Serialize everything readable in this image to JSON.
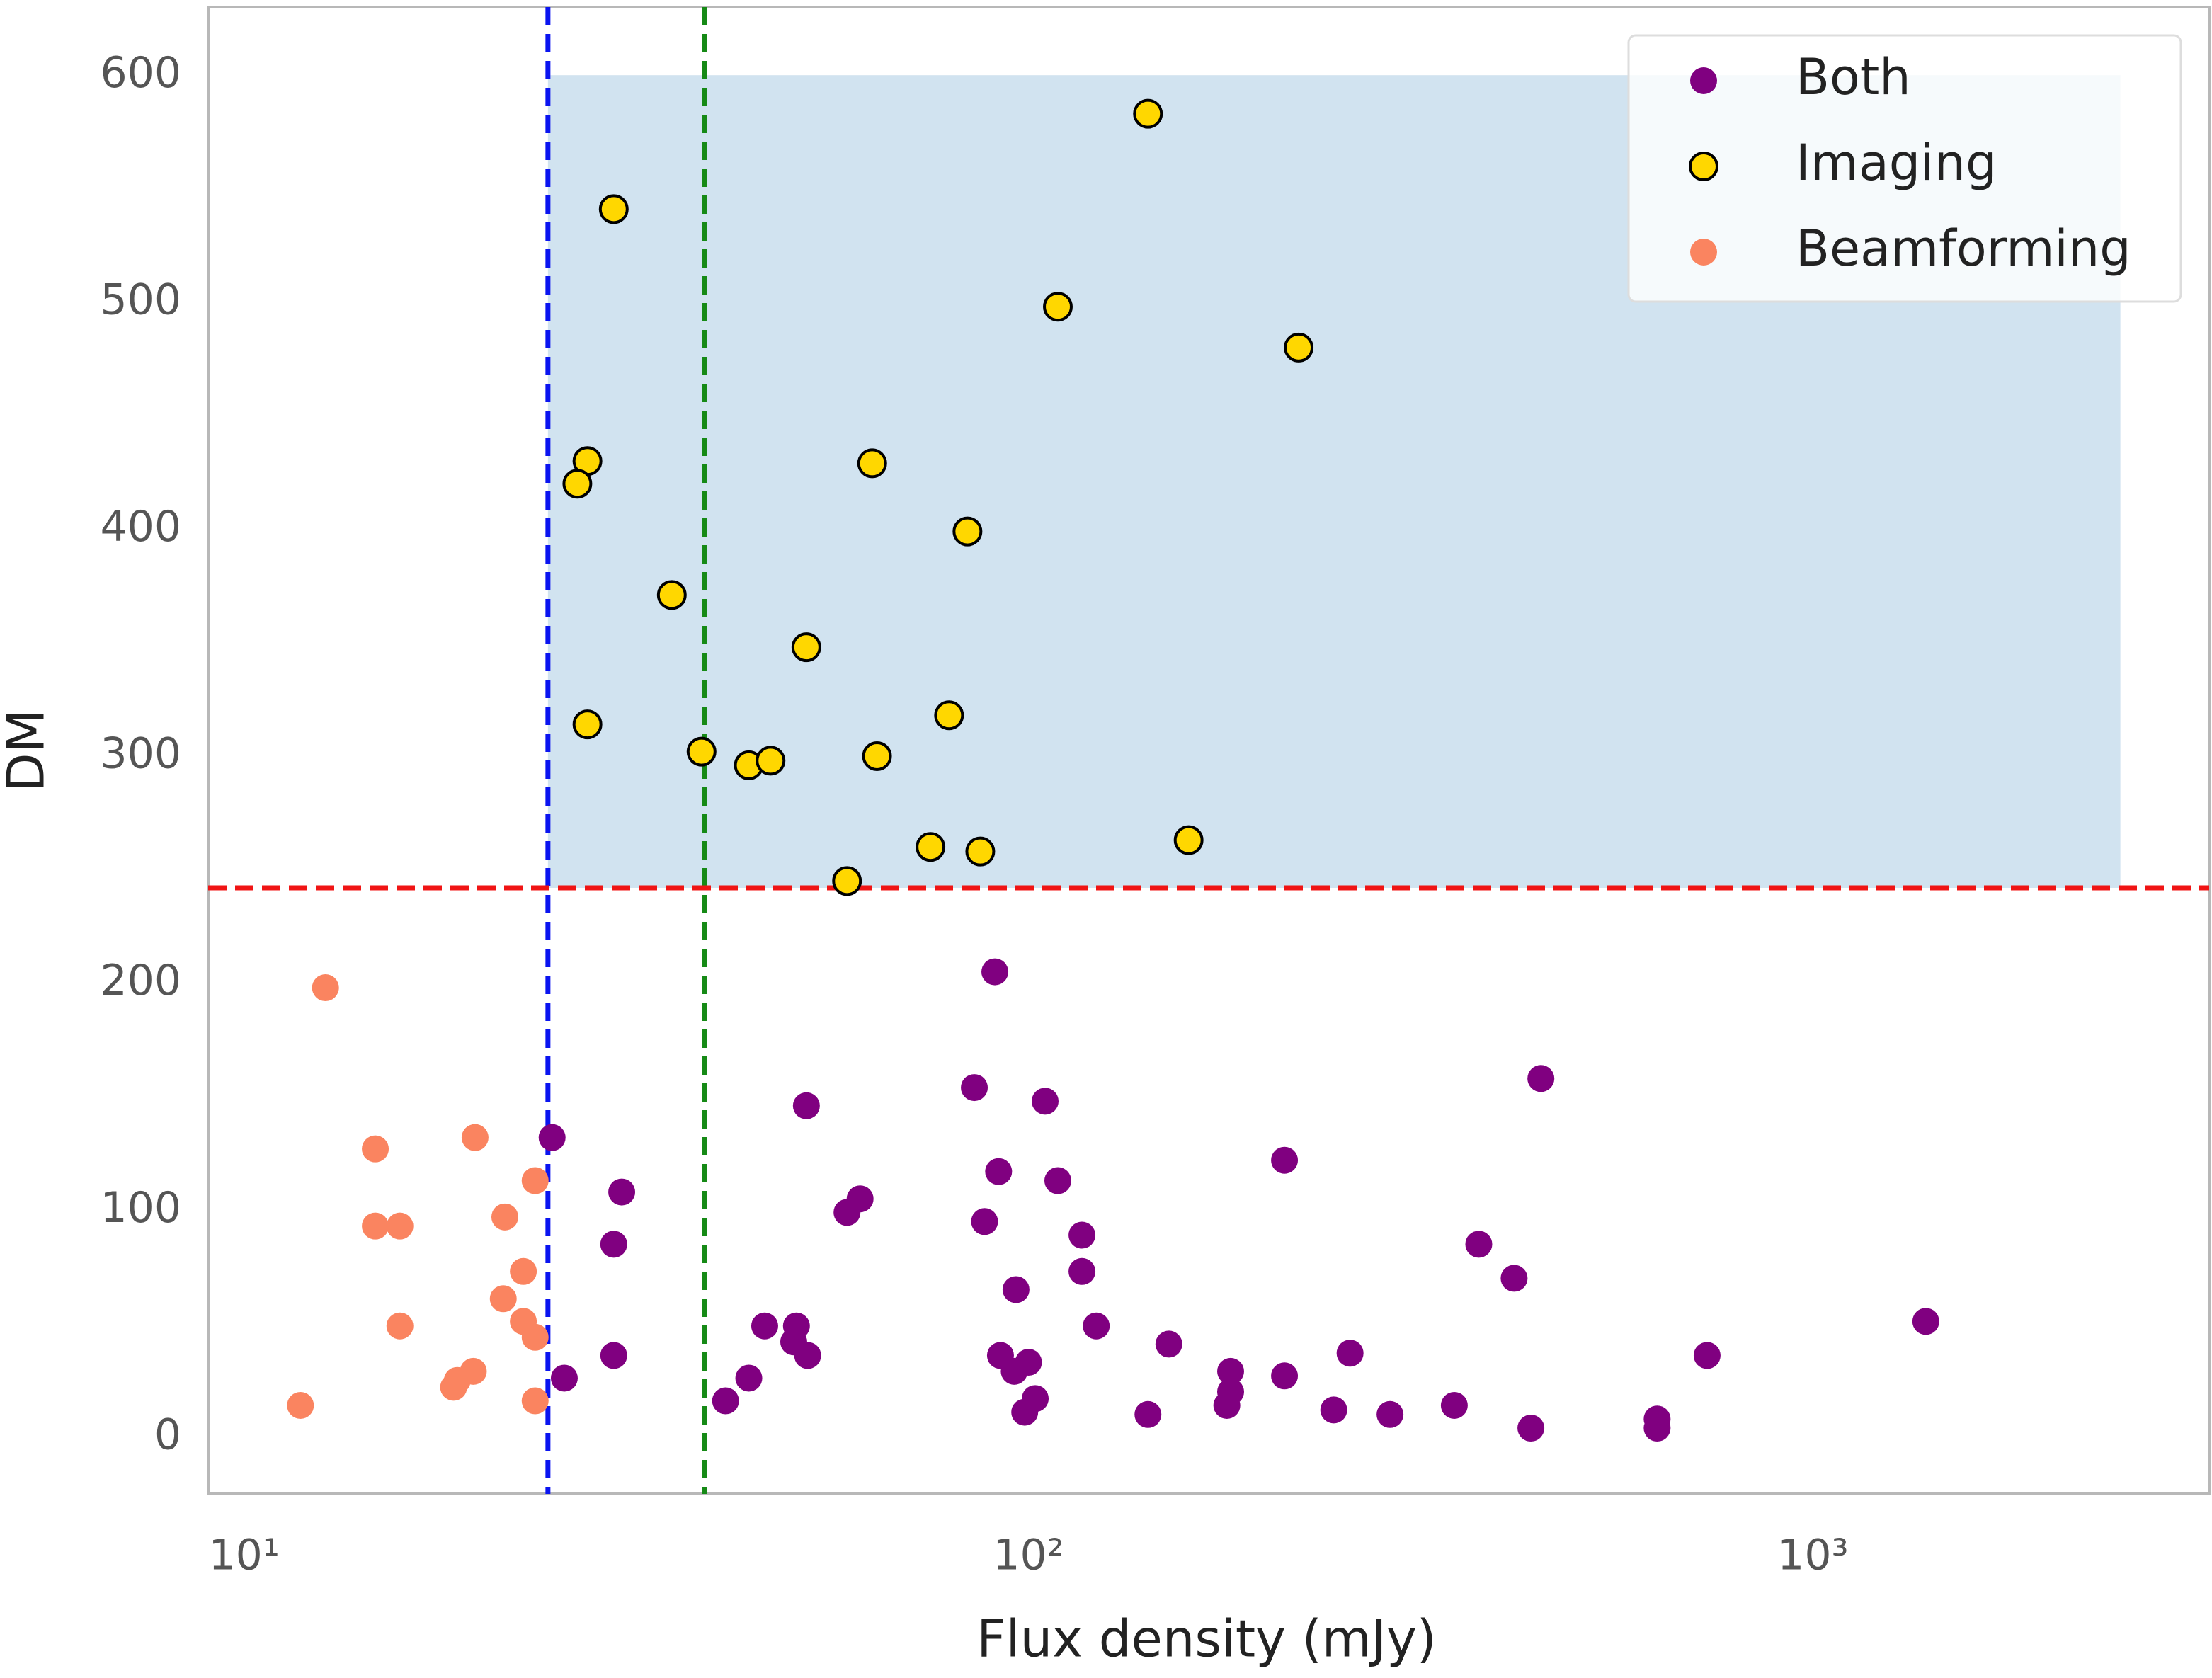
{
  "chart_data": {
    "type": "scatter",
    "xlabel": "Flux density (mJy)",
    "ylabel": "DM",
    "xscale": "log",
    "xlim": [
      9.0,
      3200
    ],
    "ylim": [
      -25,
      630
    ],
    "xticks": [
      {
        "value": 10,
        "label": "10¹"
      },
      {
        "value": 100,
        "label": "10²"
      },
      {
        "value": 1000,
        "label": "10³"
      }
    ],
    "yticks": [
      0,
      100,
      200,
      300,
      400,
      500,
      600
    ],
    "grid": false,
    "legend": "upper right",
    "shaded_region": {
      "xlim": [
        24.4,
        2466
      ],
      "ylim": [
        242,
        600
      ],
      "color": "#d1e3f0"
    },
    "reference_lines": [
      {
        "axis": "x",
        "value": 24.4,
        "color": "#0a14f0"
      },
      {
        "axis": "x",
        "value": 38.6,
        "color": "#168a16"
      },
      {
        "axis": "y",
        "value": 242,
        "color": "#f01414"
      }
    ],
    "series": [
      {
        "name": "Both",
        "color": "#800080",
        "edgecolor": null,
        "x": [
          90.6,
          24.7,
          52.1,
          85.3,
          105,
          450,
          212,
          91.6,
          109,
          30.3,
          61.0,
          58.7,
          87.9,
          29.6,
          117,
          375,
          117,
          416,
          96.4,
          122,
          46.1,
          50.6,
          1393,
          151,
          50.2,
          52.3,
          29.6,
          92.1,
          100,
          257,
          733,
          181,
          212,
          95.9,
          25.6,
          44.0,
          102,
          181,
          179,
          41.1,
          98.9,
          142,
          245,
          289,
          349,
          437,
          633,
          633
        ],
        "values": [
          205,
          132,
          146,
          154,
          148,
          158,
          122,
          117,
          113,
          108,
          105,
          99,
          95,
          85,
          89,
          85,
          73,
          70,
          65,
          49,
          49,
          49,
          51,
          41,
          42,
          36,
          36,
          36,
          33,
          37,
          36,
          29,
          27,
          29,
          26,
          26,
          17,
          20,
          14,
          16,
          11,
          10,
          12,
          10,
          14,
          4,
          8,
          4
        ]
      },
      {
        "name": "Imaging",
        "color": "#ffd700",
        "edgecolor": "#000000",
        "x": [
          142,
          29.6,
          109,
          221,
          27.4,
          26.6,
          63.2,
          83.6,
          35.1,
          52.1,
          27.4,
          79.2,
          38.3,
          44.0,
          46.9,
          64.1,
          75.0,
          86.8,
          160,
          58.7
        ],
        "values": [
          583,
          541,
          498,
          480,
          430,
          420,
          429,
          399,
          371,
          348,
          314,
          318,
          302,
          296,
          298,
          300,
          260,
          258,
          263,
          245
        ]
      },
      {
        "name": "Beamforming",
        "color": "#fa8460",
        "edgecolor": null,
        "x": [
          12.7,
          14.7,
          19.7,
          23.5,
          14.7,
          15.8,
          21.5,
          22.7,
          15.8,
          21.4,
          22.7,
          23.5,
          18.7,
          19.6,
          18.5,
          11.8,
          23.5
        ],
        "values": [
          198,
          127,
          132,
          113,
          93,
          93,
          97,
          73,
          49,
          61,
          51,
          44,
          25,
          29,
          22,
          14,
          16
        ]
      }
    ]
  }
}
